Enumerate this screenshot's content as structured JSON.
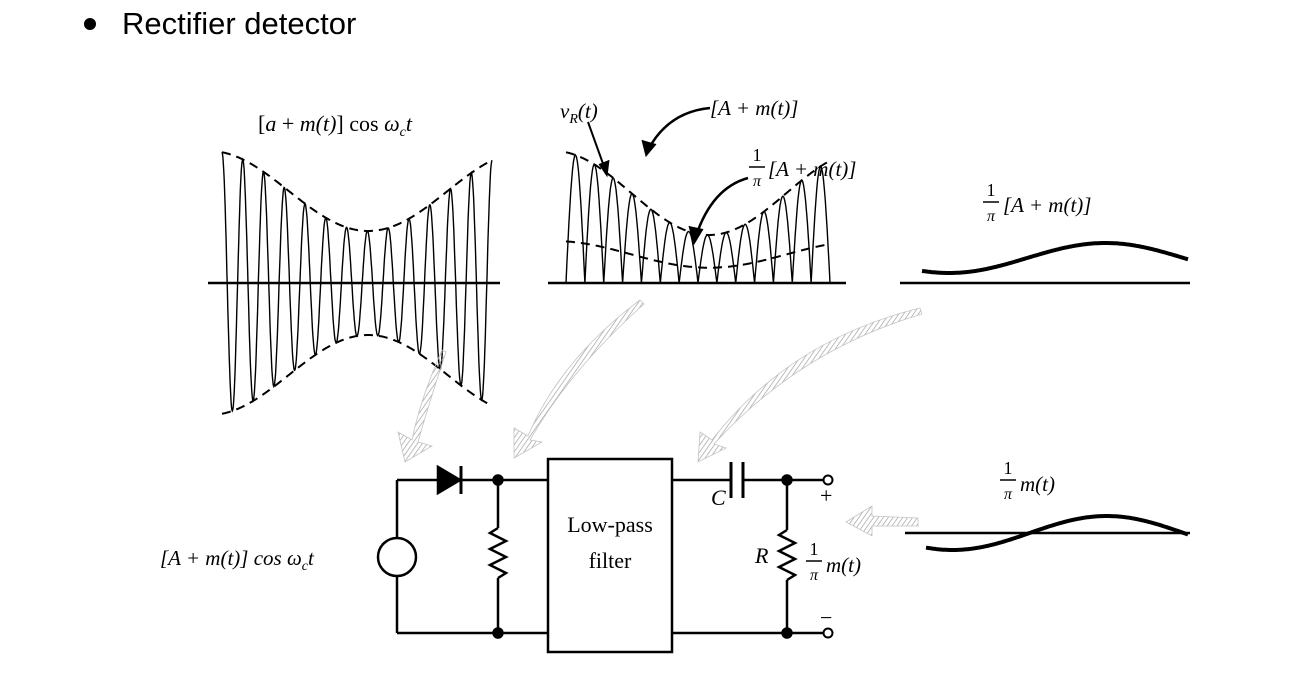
{
  "slide": {
    "bullet": "Rectifier detector"
  },
  "panel1": {
    "label_bracket_open": "[",
    "label_a": "a",
    "label_plus": " + ",
    "label_m": "m",
    "label_t": "(t)",
    "label_bracket_close": "]",
    "label_cos": " cos ",
    "label_omega": "ω",
    "label_c": "c",
    "label_tt": "t"
  },
  "panel2": {
    "vr_v": "v",
    "vr_sub": "R",
    "vr_t": "(t)",
    "env_label": "[A + m(t)]",
    "frac_num": "1",
    "frac_den": "π",
    "avg_label": "[A + m(t)]"
  },
  "panel3": {
    "frac_num": "1",
    "frac_den": "π",
    "label": "[A + m(t)]"
  },
  "panel4": {
    "frac_num": "1",
    "frac_den": "π",
    "label": "m(t)"
  },
  "circuit": {
    "source_label": "[A + m(t)] cos ω",
    "source_sub": "c",
    "source_t": "t",
    "lpf_line1": "Low-pass",
    "lpf_line2": "filter",
    "cap_label": "C",
    "res_label": "R",
    "out_frac_num": "1",
    "out_frac_den": "π",
    "out_label": "m(t)",
    "plus": "+",
    "minus": "−"
  }
}
